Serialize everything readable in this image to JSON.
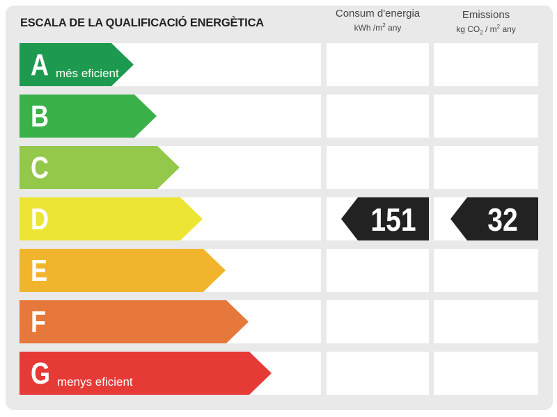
{
  "title": "ESCALA DE LA QUALIFICACIÓ ENERGÈTICA",
  "columns": {
    "energy": {
      "label": "Consum d'energia",
      "unit_a": "kWh /m",
      "unit_sup": "2",
      "unit_b": " any"
    },
    "emissions": {
      "label": "Emissions",
      "unit_a": "kg CO",
      "unit_sub": "2",
      "unit_mid": " / m",
      "unit_sup": "2",
      "unit_b": "  any"
    }
  },
  "ratings": [
    {
      "letter": "A",
      "sublabel": "més eficient",
      "color": "#1e9a50"
    },
    {
      "letter": "B",
      "sublabel": "",
      "color": "#3bb149"
    },
    {
      "letter": "C",
      "sublabel": "",
      "color": "#93c84a"
    },
    {
      "letter": "D",
      "sublabel": "",
      "color": "#ece534"
    },
    {
      "letter": "E",
      "sublabel": "",
      "color": "#f1b52d"
    },
    {
      "letter": "F",
      "sublabel": "",
      "color": "#e5783a"
    },
    {
      "letter": "G",
      "sublabel": "menys eficient",
      "color": "#e63a36"
    }
  ],
  "current": {
    "rating": "D",
    "energy_value": "151",
    "emissions_value": "32",
    "badge_color": "#222222"
  }
}
